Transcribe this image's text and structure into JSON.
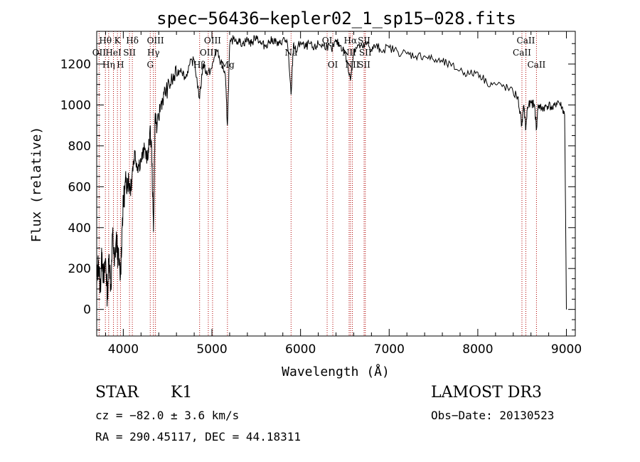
{
  "chart_data": {
    "type": "line",
    "title": "spec−56436−kepler02_1_sp15−028.fits",
    "xlabel": "Wavelength (Å)",
    "ylabel": "Flux (relative)",
    "xlim": [
      3700,
      9100
    ],
    "ylim": [
      -130,
      1360
    ],
    "xticks": [
      4000,
      5000,
      6000,
      7000,
      8000,
      9000
    ],
    "yticks": [
      0,
      200,
      400,
      600,
      800,
      1000,
      1200
    ],
    "grid": false,
    "series": [
      {
        "name": "flux",
        "x": [
          3700,
          3720,
          3740,
          3760,
          3780,
          3800,
          3820,
          3840,
          3860,
          3880,
          3900,
          3920,
          3940,
          3968,
          3990,
          4010,
          4030,
          4050,
          4080,
          4102,
          4130,
          4160,
          4200,
          4240,
          4280,
          4300,
          4320,
          4340,
          4360,
          4380,
          4420,
          4460,
          4500,
          4550,
          4600,
          4650,
          4700,
          4750,
          4800,
          4861,
          4900,
          4950,
          5000,
          5050,
          5100,
          5150,
          5175,
          5200,
          5250,
          5300,
          5350,
          5400,
          5450,
          5500,
          5550,
          5600,
          5650,
          5700,
          5750,
          5800,
          5850,
          5893,
          5920,
          5950,
          6000,
          6050,
          6100,
          6150,
          6200,
          6250,
          6300,
          6350,
          6400,
          6450,
          6500,
          6563,
          6600,
          6650,
          6700,
          6750,
          6800,
          6850,
          6900,
          7000,
          7100,
          7200,
          7300,
          7400,
          7500,
          7600,
          7700,
          7800,
          7900,
          8000,
          8100,
          8200,
          8300,
          8400,
          8450,
          8498,
          8520,
          8542,
          8560,
          8600,
          8640,
          8662,
          8680,
          8720,
          8760,
          8800,
          8850,
          8900,
          8950,
          8980,
          9000
        ],
        "y": [
          120,
          240,
          100,
          280,
          130,
          250,
          60,
          270,
          100,
          380,
          210,
          350,
          260,
          160,
          450,
          560,
          620,
          640,
          600,
          680,
          770,
          700,
          730,
          780,
          740,
          880,
          780,
          380,
          960,
          880,
          1000,
          1050,
          1080,
          1120,
          1150,
          1180,
          1130,
          1200,
          1220,
          1030,
          1200,
          1150,
          1180,
          1270,
          1210,
          1150,
          900,
          1290,
          1330,
          1310,
          1300,
          1320,
          1300,
          1340,
          1300,
          1290,
          1310,
          1320,
          1290,
          1320,
          1310,
          1050,
          1300,
          1260,
          1310,
          1280,
          1300,
          1270,
          1300,
          1290,
          1290,
          1270,
          1310,
          1290,
          1260,
          1120,
          1270,
          1290,
          1280,
          1300,
          1270,
          1290,
          1270,
          1280,
          1260,
          1250,
          1240,
          1240,
          1220,
          1210,
          1190,
          1170,
          1150,
          1160,
          1110,
          1100,
          1090,
          1060,
          1040,
          900,
          1000,
          880,
          990,
          1010,
          1000,
          880,
          1000,
          980,
          990,
          1000,
          980,
          1020,
          990,
          950,
          0
        ]
      }
    ],
    "spectral_lines": [
      {
        "label": "Hθ",
        "x": 3798,
        "row": 0
      },
      {
        "label": "OII",
        "x": 3727,
        "row": 1
      },
      {
        "label": "Hη",
        "x": 3835,
        "row": 2
      },
      {
        "label": "HeI",
        "x": 3889,
        "row": 1
      },
      {
        "label": "K",
        "x": 3934,
        "row": 0
      },
      {
        "label": "SII",
        "x": 4070,
        "row": 1
      },
      {
        "label": "H",
        "x": 3968,
        "row": 2
      },
      {
        "label": "Hδ",
        "x": 4102,
        "row": 0
      },
      {
        "label": "OIII",
        "x": 4363,
        "row": 0
      },
      {
        "label": "Hγ",
        "x": 4340,
        "row": 1
      },
      {
        "label": "G",
        "x": 4304,
        "row": 2
      },
      {
        "label": "OIII",
        "x": 5007,
        "row": 0
      },
      {
        "label": "OIII",
        "x": 4959,
        "row": 1
      },
      {
        "label": "Hβ",
        "x": 4861,
        "row": 2
      },
      {
        "label": "Mg",
        "x": 5175,
        "row": 2
      },
      {
        "label": "Na",
        "x": 5893,
        "row": 1
      },
      {
        "label": "OI",
        "x": 6300,
        "row": 0
      },
      {
        "label": "OI",
        "x": 6364,
        "row": 2
      },
      {
        "label": "Hα",
        "x": 6563,
        "row": 0
      },
      {
        "label": "NII",
        "x": 6548,
        "row": 1
      },
      {
        "label": "NII",
        "x": 6584,
        "row": 2
      },
      {
        "label": "SII",
        "x": 6717,
        "row": 0
      },
      {
        "label": "SII",
        "x": 6731,
        "row": 1
      },
      {
        "label": "SII",
        "x": 6717,
        "row": 2
      },
      {
        "label": "CaII",
        "x": 8542,
        "row": 0
      },
      {
        "label": "CaII",
        "x": 8498,
        "row": 1
      },
      {
        "label": "CaII",
        "x": 8662,
        "row": 2
      }
    ]
  },
  "info": {
    "object_class": "STAR",
    "subclass": "K1",
    "survey": "LAMOST DR3",
    "cz": "cz = −82.0 ± 3.6 km/s",
    "obs_date": "Obs−Date: 20130523",
    "coords": "RA = 290.45117, DEC =  44.18311"
  },
  "colors": {
    "line": "#000000",
    "marker": "#b00000"
  }
}
